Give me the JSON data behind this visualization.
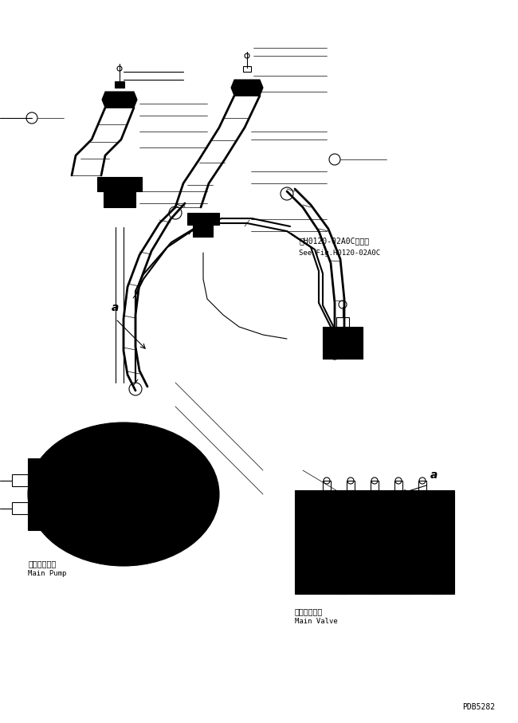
{
  "bg_color": "#ffffff",
  "line_color": "#000000",
  "line_width": 0.8,
  "fig_width": 6.5,
  "fig_height": 9.07,
  "dpi": 100,
  "text_main_pump_jp": "メインポンプ",
  "text_main_pump_en": "Main Pump",
  "text_main_valve_jp": "メインバルブ",
  "text_main_valve_en": "Main Valve",
  "text_see_fig_jp": "第H0120-02A0C図参照",
  "text_see_fig_en": "See Fig.H0120-02A0C",
  "text_part_id": "PDB5282",
  "label_a_left": "a",
  "label_a_right": "a"
}
